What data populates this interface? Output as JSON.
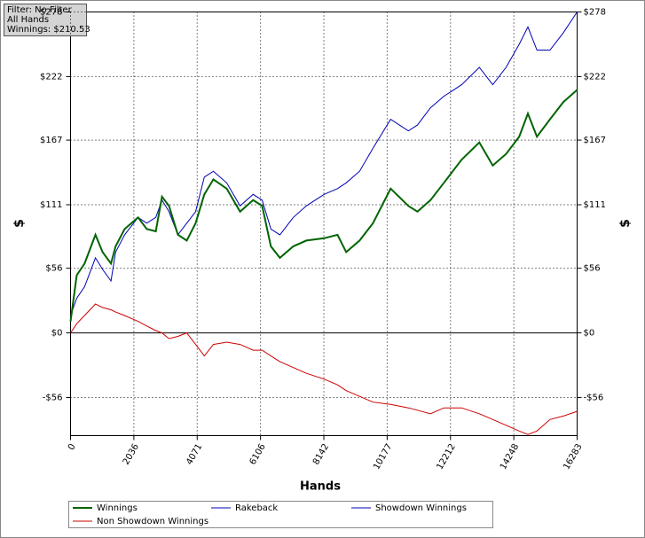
{
  "chart_data": {
    "type": "line",
    "annotations": [
      "Filter: No Filter",
      "All Hands",
      "Winnings: $210.53"
    ],
    "xlabel": "Hands",
    "ylabel": "$",
    "x": [
      0,
      200,
      450,
      800,
      1030,
      1300,
      1450,
      1740,
      2170,
      2450,
      2740,
      2940,
      3165,
      3450,
      3735,
      4020,
      4300,
      4590,
      5020,
      5450,
      5870,
      6160,
      6440,
      6730,
      7160,
      7580,
      8150,
      8580,
      8860,
      9290,
      9720,
      10290,
      10860,
      11150,
      11570,
      12000,
      12570,
      13140,
      13570,
      14000,
      14420,
      14700,
      14990,
      15410,
      15840,
      16283
    ],
    "series": [
      {
        "name": "Rakeback",
        "color": "#0000b4",
        "width": 1,
        "values": [
          10,
          50,
          60,
          85,
          70,
          60,
          75,
          90,
          100,
          90,
          88,
          118,
          110,
          85,
          80,
          95,
          120,
          133,
          125,
          105,
          115,
          110,
          75,
          65,
          75,
          80,
          82,
          85,
          70,
          80,
          95,
          125,
          110,
          105,
          115,
          130,
          150,
          165,
          145,
          155,
          170,
          190,
          170,
          185,
          200,
          210.53
        ]
      },
      {
        "name": "Showdown Winnings",
        "color": "#0000b4",
        "width": 1,
        "values": [
          15,
          30,
          40,
          65,
          55,
          45,
          70,
          85,
          100,
          95,
          100,
          115,
          105,
          85,
          95,
          105,
          135,
          140,
          130,
          110,
          120,
          115,
          90,
          85,
          100,
          110,
          120,
          125,
          130,
          140,
          160,
          185,
          175,
          180,
          195,
          205,
          215,
          230,
          215,
          230,
          250,
          265,
          245,
          245,
          260,
          278
        ]
      },
      {
        "name": "Non Showdown Winnings",
        "color": "#cc0000",
        "width": 1,
        "values": [
          0,
          8,
          15,
          25,
          22,
          20,
          18,
          15,
          10,
          6,
          2,
          0,
          -5,
          -3,
          0,
          -10,
          -20,
          -10,
          -8,
          -10,
          -15,
          -15,
          -20,
          -25,
          -30,
          -35,
          -40,
          -45,
          -50,
          -55,
          -60,
          -62,
          -65,
          -67,
          -70,
          -65,
          -65,
          -70,
          -75,
          -80,
          -85,
          -88,
          -85,
          -75,
          -72,
          -68
        ]
      },
      {
        "name": "Winnings",
        "color": "#006400",
        "width": 2,
        "values": [
          10,
          50,
          60,
          85,
          70,
          60,
          75,
          90,
          100,
          90,
          88,
          118,
          110,
          85,
          80,
          95,
          120,
          133,
          125,
          105,
          115,
          110,
          75,
          65,
          75,
          80,
          82,
          85,
          70,
          80,
          95,
          125,
          110,
          105,
          115,
          130,
          150,
          165,
          145,
          155,
          170,
          190,
          170,
          185,
          200,
          210.53
        ]
      }
    ],
    "xlim": [
      0,
      16283
    ],
    "xticks": [
      0,
      2036,
      4071,
      6106,
      8142,
      10177,
      12212,
      14248,
      16283
    ],
    "ylim": [
      -89,
      278
    ],
    "yticks": [
      {
        "value": -56,
        "label": "-$56"
      },
      {
        "value": 0,
        "label": "$0"
      },
      {
        "value": 56,
        "label": "$56"
      },
      {
        "value": 111,
        "label": "$111"
      },
      {
        "value": 167,
        "label": "$167"
      },
      {
        "value": 222,
        "label": "$222"
      },
      {
        "value": 278,
        "label": "$278"
      }
    ],
    "grid": true
  }
}
